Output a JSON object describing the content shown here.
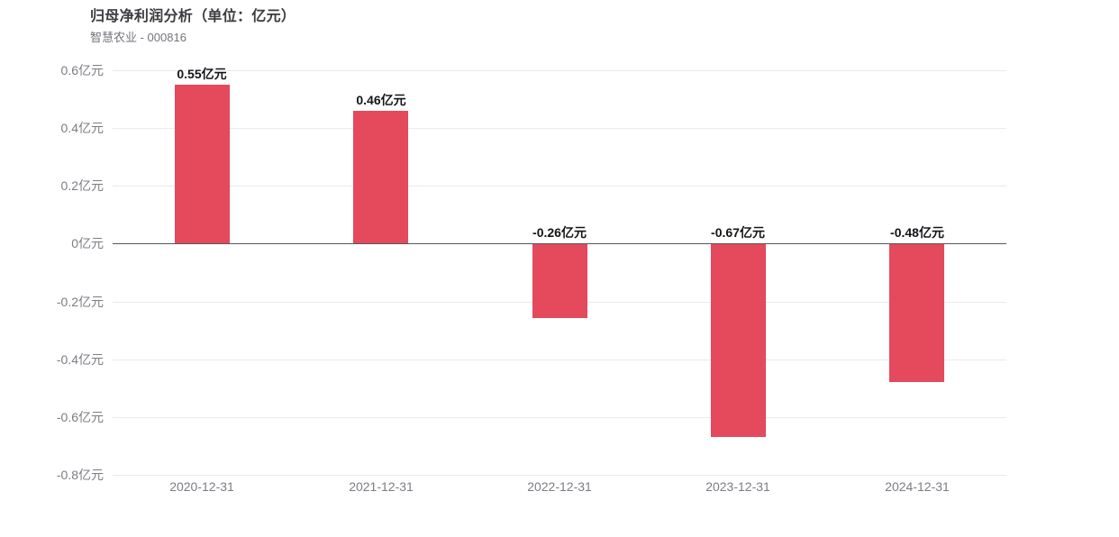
{
  "header": {
    "title": "归母净利润分析（单位：亿元）",
    "subtitle": "智慧农业 - 000816"
  },
  "colors": {
    "bar": "#e4495c",
    "gridline": "#e9e9f0",
    "zero_line": "#55575c",
    "title_text": "#3b3b40",
    "subtitle_text": "#74747c",
    "axis_tick_text": "#7c7c84",
    "value_label_text": "#141418"
  },
  "chart_data": {
    "type": "bar",
    "title": "归母净利润分析（单位：亿元）",
    "subtitle": "智慧农业 - 000816",
    "categories": [
      "2020-12-31",
      "2021-12-31",
      "2022-12-31",
      "2023-12-31",
      "2024-12-31"
    ],
    "values": [
      0.55,
      0.46,
      -0.26,
      -0.67,
      -0.48
    ],
    "value_labels": [
      "0.55亿元",
      "0.46亿元",
      "-0.26亿元",
      "-0.67亿元",
      "-0.48亿元"
    ],
    "unit": "亿元",
    "xlabel": "",
    "ylabel": "",
    "ylim": [
      -0.8,
      0.6
    ],
    "ytick_step": 0.2,
    "ytick_labels_top_to_bottom": [
      "0.6亿元",
      "0.4亿元",
      "0.2亿元",
      "0亿元",
      "-0.2亿元",
      "-0.4亿元",
      "-0.6亿元",
      "-0.8亿元"
    ],
    "grid": true,
    "legend_position": "none"
  }
}
